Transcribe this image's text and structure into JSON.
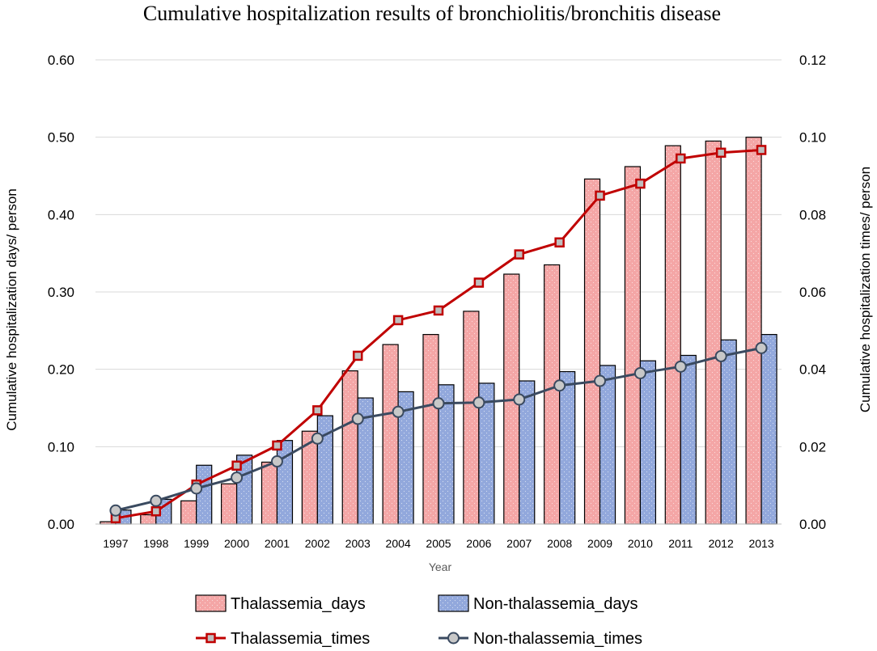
{
  "chart_data": {
    "type": "bar",
    "title": "Cumulative hospitalization results of bronchiolitis/bronchitis disease",
    "xlabel": "Year",
    "ylabel": "Cumulative hospitalization days/ person",
    "y2label": "Cumulative hospitalization times/ person",
    "categories": [
      "1997",
      "1998",
      "1999",
      "2000",
      "2001",
      "2002",
      "2003",
      "2004",
      "2005",
      "2006",
      "2007",
      "2008",
      "2009",
      "2010",
      "2011",
      "2012",
      "2013"
    ],
    "ylim": [
      0,
      0.6
    ],
    "y2lim": [
      0,
      0.12
    ],
    "yticks": [
      "0.00",
      "0.10",
      "0.20",
      "0.30",
      "0.40",
      "0.50",
      "0.60"
    ],
    "y2ticks": [
      "0.00",
      "0.02",
      "0.04",
      "0.06",
      "0.08",
      "0.10",
      "0.12"
    ],
    "grid": true,
    "legend_position": "bottom",
    "series": [
      {
        "name": "Thalassemia_days",
        "kind": "bar",
        "axis": "left",
        "color": "#F4A6A6",
        "values": [
          0.003,
          0.012,
          0.03,
          0.052,
          0.08,
          0.12,
          0.198,
          0.232,
          0.245,
          0.275,
          0.323,
          0.335,
          0.446,
          0.462,
          0.489,
          0.495,
          0.5
        ]
      },
      {
        "name": "Non-thalassemia_days",
        "kind": "bar",
        "axis": "left",
        "color": "#92A8DC",
        "values": [
          0.018,
          0.032,
          0.076,
          0.089,
          0.108,
          0.14,
          0.163,
          0.171,
          0.18,
          0.182,
          0.185,
          0.197,
          0.205,
          0.211,
          0.218,
          0.238,
          0.245
        ]
      },
      {
        "name": "Thalassemia_times",
        "kind": "line",
        "axis": "right",
        "color": "#C00000",
        "marker": "square",
        "values": [
          0.0015,
          0.0033,
          0.0102,
          0.0151,
          0.0203,
          0.0294,
          0.0435,
          0.0527,
          0.0552,
          0.0624,
          0.0697,
          0.0728,
          0.0849,
          0.088,
          0.0945,
          0.096,
          0.0967
        ]
      },
      {
        "name": "Non-thalassemia_times",
        "kind": "line",
        "axis": "right",
        "color": "#3A4A60",
        "marker": "circle",
        "values": [
          0.0035,
          0.006,
          0.0092,
          0.012,
          0.0162,
          0.0221,
          0.0272,
          0.029,
          0.0312,
          0.0314,
          0.0322,
          0.0358,
          0.037,
          0.039,
          0.0407,
          0.0434,
          0.0455
        ]
      }
    ]
  }
}
